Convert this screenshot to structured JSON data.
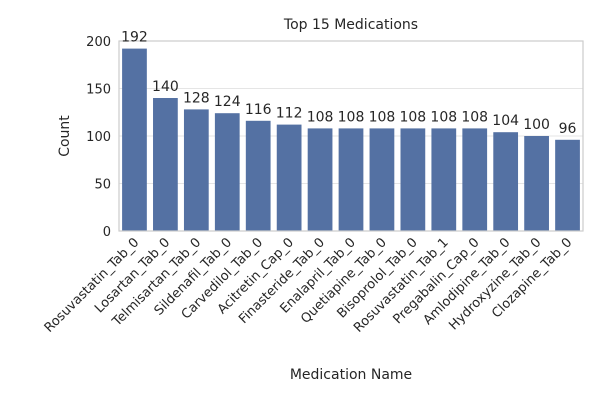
{
  "chart_data": {
    "type": "bar",
    "title": "Top 15 Medications",
    "xlabel": "Medication Name",
    "ylabel": "Count",
    "categories": [
      "Rosuvastatin_Tab_0",
      "Losartan_Tab_0",
      "Telmisartan_Tab_0",
      "Sildenafil_Tab_0",
      "Carvedilol_Tab_0",
      "Acitretin_Cap_0",
      "Finasteride_Tab_0",
      "Enalapril_Tab_0",
      "Quetiapine_Tab_0",
      "Bisoprolol_Tab_0",
      "Rosuvastatin_Tab_1",
      "Pregabalin_Cap_0",
      "Amlodipine_Tab_0",
      "Hydroxyzine_Tab_0",
      "Clozapine_Tab_0"
    ],
    "values": [
      192,
      140,
      128,
      124,
      116,
      112,
      108,
      108,
      108,
      108,
      108,
      108,
      104,
      100,
      96
    ],
    "data_labels": [
      "192",
      "140",
      "128",
      "124",
      "116",
      "112",
      "108",
      "108",
      "108",
      "108",
      "108",
      "108",
      "104",
      "100",
      "96"
    ],
    "yticks": [
      "0",
      "50",
      "100",
      "150",
      "200"
    ],
    "ylim": [
      0,
      200
    ],
    "grid": "horizontal",
    "bar_color": "#5471a3",
    "grid_color": "#e5e5e5",
    "frame_color": "#cccccc"
  }
}
